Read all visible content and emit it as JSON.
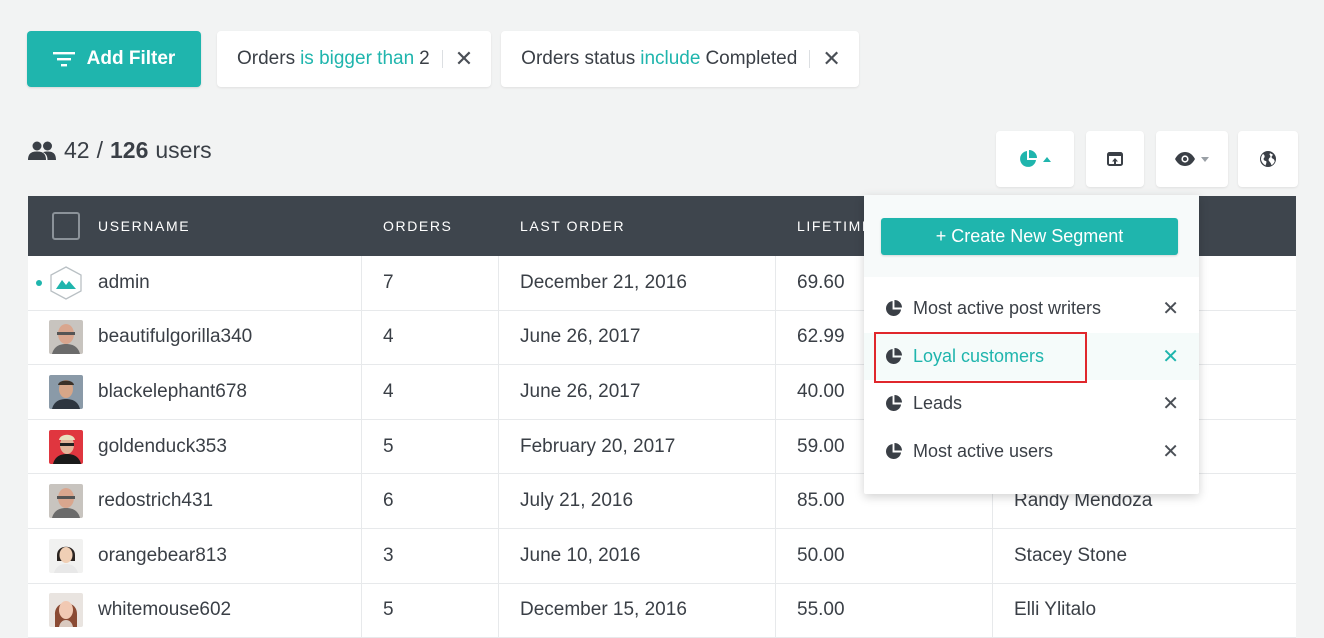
{
  "filters": {
    "add_filter_label": "Add Filter",
    "chips": [
      {
        "field": "Orders",
        "operator": "is bigger than",
        "value": "2"
      },
      {
        "field": "Orders status",
        "operator": "include",
        "value": "Completed"
      }
    ],
    "remove_glyph": "✕"
  },
  "count": {
    "shown": "42",
    "separator": "/",
    "total": "126",
    "unit": "users"
  },
  "toolbar": {
    "segments_icon": "pie-chart-icon",
    "export_icon": "export-icon",
    "visibility_icon": "eye-icon",
    "globe_icon": "globe-icon"
  },
  "table": {
    "headers": [
      "USERNAME",
      "ORDERS",
      "LAST ORDER",
      "LIFETIME",
      ""
    ],
    "rows": [
      {
        "username": "admin",
        "orders": "7",
        "last_order": "December 21, 2016",
        "lifetime": "69.60",
        "name": ""
      },
      {
        "username": "beautifulgorilla340",
        "orders": "4",
        "last_order": "June 26, 2017",
        "lifetime": "62.99",
        "name": ""
      },
      {
        "username": "blackelephant678",
        "orders": "4",
        "last_order": "June 26, 2017",
        "lifetime": "40.00",
        "name": ""
      },
      {
        "username": "goldenduck353",
        "orders": "5",
        "last_order": "February 20, 2017",
        "lifetime": "59.00",
        "name": ""
      },
      {
        "username": "redostrich431",
        "orders": "6",
        "last_order": "July 21, 2016",
        "lifetime": "85.00",
        "name": "Randy Mendoza"
      },
      {
        "username": "orangebear813",
        "orders": "3",
        "last_order": "June 10, 2016",
        "lifetime": "50.00",
        "name": "Stacey Stone"
      },
      {
        "username": "whitemouse602",
        "orders": "5",
        "last_order": "December 15, 2016",
        "lifetime": "55.00",
        "name": "Elli Ylitalo"
      }
    ]
  },
  "segments": {
    "create_label": "+ Create New Segment",
    "items": [
      {
        "label": "Most active post writers"
      },
      {
        "label": "Loyal customers",
        "active": true
      },
      {
        "label": "Leads"
      },
      {
        "label": "Most active users"
      }
    ],
    "remove_glyph": "✕"
  },
  "colors": {
    "accent": "#1fb5ad",
    "header_bg": "#3e454d",
    "highlight": "#e0272c"
  }
}
